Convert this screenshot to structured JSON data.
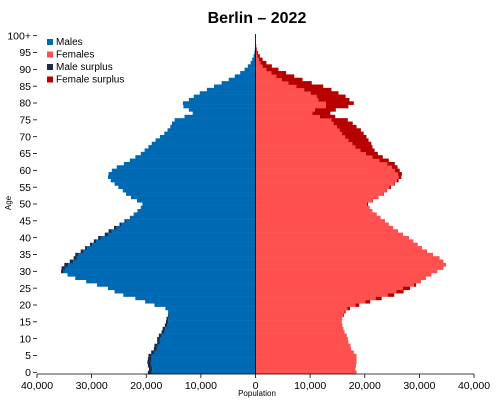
{
  "chart_data": {
    "type": "bar",
    "orientation": "horizontal",
    "title": "Berlin – 2022",
    "xlabel": "Population",
    "ylabel": "Age",
    "xlim": [
      -40000,
      40000
    ],
    "x_ticks": [
      -40000,
      -30000,
      -20000,
      -10000,
      0,
      10000,
      20000,
      30000,
      40000
    ],
    "x_tick_labels": [
      "40,000",
      "30,000",
      "20,000",
      "10,000",
      "0",
      "10,000",
      "20,000",
      "30,000",
      "40,000"
    ],
    "y_ticks": [
      0,
      5,
      10,
      15,
      20,
      25,
      30,
      35,
      40,
      45,
      50,
      55,
      60,
      65,
      70,
      75,
      80,
      85,
      90,
      95,
      100
    ],
    "y_tick_labels": [
      "0",
      "5",
      "10",
      "15",
      "20",
      "25",
      "30",
      "35",
      "40",
      "45",
      "50",
      "55",
      "60",
      "65",
      "70",
      "75",
      "80",
      "85",
      "90",
      "95",
      "100+"
    ],
    "legend_position": "top-left",
    "grid": false,
    "colors": {
      "males": "#0069b4",
      "females": "#ff5050",
      "male_surplus": "#1c2b4a",
      "female_surplus": "#b80000"
    },
    "legend": [
      {
        "key": "males",
        "label": "Males"
      },
      {
        "key": "females",
        "label": "Females"
      },
      {
        "key": "male_surplus",
        "label": "Male surplus"
      },
      {
        "key": "female_surplus",
        "label": "Female surplus"
      }
    ],
    "ages": [
      0,
      1,
      2,
      3,
      4,
      5,
      6,
      7,
      8,
      9,
      10,
      11,
      12,
      13,
      14,
      15,
      16,
      17,
      18,
      19,
      20,
      21,
      22,
      23,
      24,
      25,
      26,
      27,
      28,
      29,
      30,
      31,
      32,
      33,
      34,
      35,
      36,
      37,
      38,
      39,
      40,
      41,
      42,
      43,
      44,
      45,
      46,
      47,
      48,
      49,
      50,
      51,
      52,
      53,
      54,
      55,
      56,
      57,
      58,
      59,
      60,
      61,
      62,
      63,
      64,
      65,
      66,
      67,
      68,
      69,
      70,
      71,
      72,
      73,
      74,
      75,
      76,
      77,
      78,
      79,
      80,
      81,
      82,
      83,
      84,
      85,
      86,
      87,
      88,
      89,
      90,
      91,
      92,
      93,
      94,
      95,
      96,
      97,
      98,
      99,
      100
    ],
    "series": [
      {
        "name": "Males",
        "values": [
          19700,
          19500,
          19700,
          19800,
          19700,
          19600,
          19100,
          18600,
          18500,
          18000,
          18000,
          17700,
          17200,
          17000,
          16600,
          16400,
          16300,
          16000,
          16000,
          16500,
          18500,
          20200,
          22000,
          24200,
          25800,
          27000,
          29000,
          31000,
          33000,
          34400,
          35600,
          35500,
          35000,
          34000,
          33300,
          33000,
          32000,
          31200,
          30300,
          29600,
          28800,
          27600,
          26900,
          25900,
          24900,
          24000,
          23000,
          22300,
          21600,
          21000,
          20700,
          21700,
          22800,
          23700,
          24300,
          25100,
          25800,
          26500,
          27000,
          26900,
          26300,
          25400,
          24100,
          23000,
          22000,
          21000,
          20300,
          19600,
          19000,
          18300,
          17500,
          16700,
          16100,
          15600,
          15300,
          14800,
          13000,
          11500,
          12200,
          13200,
          13300,
          12200,
          11300,
          10200,
          8900,
          7600,
          6200,
          4900,
          3800,
          2800,
          2000,
          1400,
          900,
          600,
          350,
          200,
          120,
          70,
          40,
          20,
          30
        ],
        "surplus": [
          700,
          600,
          700,
          650,
          650,
          600,
          600,
          550,
          550,
          500,
          500,
          500,
          450,
          450,
          450,
          400,
          300,
          200,
          0,
          0,
          0,
          0,
          0,
          0,
          0,
          0,
          0,
          0,
          0,
          0,
          500,
          700,
          700,
          600,
          600,
          500,
          500,
          400,
          400,
          400,
          500,
          600,
          600,
          500,
          400,
          200,
          100,
          100,
          100,
          100,
          0,
          0,
          0,
          0,
          0,
          0,
          0,
          0,
          0,
          0,
          0,
          0,
          0,
          0,
          0,
          0,
          0,
          0,
          0,
          0,
          0,
          0,
          0,
          0,
          0,
          0,
          0,
          0,
          0,
          0,
          0,
          0,
          0,
          0,
          0,
          0,
          0,
          0,
          0,
          0,
          0,
          0,
          0,
          0,
          0,
          0,
          0,
          0,
          0,
          0,
          0
        ]
      },
      {
        "name": "Females",
        "values": [
          18500,
          18300,
          18400,
          18500,
          18500,
          18500,
          18000,
          17500,
          17400,
          17000,
          16900,
          16700,
          16300,
          16100,
          15900,
          15800,
          15900,
          16200,
          16500,
          17300,
          19000,
          21000,
          23100,
          25400,
          27100,
          28300,
          29400,
          30300,
          31200,
          32200,
          33300,
          34400,
          34900,
          34400,
          33700,
          32500,
          31400,
          30500,
          29700,
          28900,
          28100,
          27000,
          26100,
          25200,
          24400,
          23700,
          22900,
          22200,
          21400,
          20900,
          20600,
          21500,
          22500,
          23500,
          24100,
          24800,
          25500,
          26200,
          26700,
          26800,
          26400,
          26000,
          25500,
          24400,
          23300,
          22400,
          21800,
          21400,
          21200,
          20700,
          20300,
          19800,
          19300,
          18500,
          17800,
          16900,
          14600,
          13700,
          14700,
          17000,
          18000,
          17200,
          16500,
          15200,
          13900,
          12400,
          10300,
          8600,
          7100,
          5600,
          4200,
          3000,
          2000,
          1300,
          800,
          450,
          250,
          130,
          70,
          40,
          50
        ],
        "surplus": [
          0,
          0,
          0,
          0,
          0,
          0,
          0,
          0,
          0,
          0,
          0,
          0,
          0,
          0,
          0,
          0,
          0,
          100,
          200,
          500,
          700,
          900,
          1100,
          1200,
          1300,
          1300,
          400,
          0,
          0,
          0,
          0,
          0,
          0,
          0,
          0,
          0,
          0,
          0,
          0,
          0,
          0,
          0,
          0,
          0,
          0,
          0,
          0,
          0,
          0,
          0,
          200,
          100,
          100,
          100,
          100,
          300,
          200,
          300,
          500,
          700,
          900,
          1000,
          1400,
          1700,
          1900,
          2200,
          2600,
          3100,
          3500,
          3700,
          3900,
          4000,
          3900,
          3600,
          3500,
          3000,
          2800,
          3300,
          3800,
          4100,
          5100,
          5700,
          5300,
          5100,
          5000,
          4900,
          4300,
          3800,
          3300,
          2700,
          2200,
          1700,
          1100,
          700,
          450,
          250,
          130,
          60,
          30,
          20,
          20
        ]
      }
    ]
  }
}
